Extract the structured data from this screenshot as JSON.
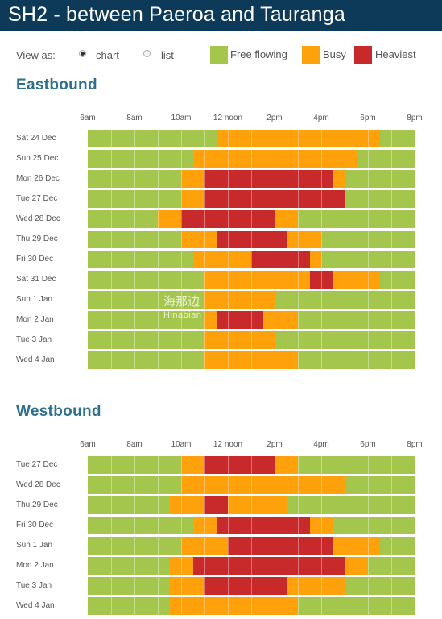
{
  "header": {
    "title": "SH2 - between Paeroa and Tauranga"
  },
  "view": {
    "label": "View as:",
    "options": [
      "chart",
      "list"
    ],
    "selected": "chart"
  },
  "legend": [
    {
      "label": "Free flowing",
      "color": "#a5c64d"
    },
    {
      "label": "Busy",
      "color": "#ffa10a"
    },
    {
      "label": "Heaviest",
      "color": "#c8292a"
    }
  ],
  "time_axis": {
    "labels": [
      "6am",
      "8am",
      "10am",
      "12 noon",
      "2pm",
      "4pm",
      "6pm",
      "8pm"
    ]
  },
  "watermark": {
    "cn": "海那边",
    "en": "Hinabian"
  },
  "chart_data": [
    {
      "type": "timeline",
      "title": "Eastbound",
      "x_unit": "hour of day",
      "xlim": [
        6,
        20
      ],
      "levels": [
        "Free flowing",
        "Busy",
        "Heaviest"
      ],
      "rows": [
        {
          "label": "Sat 24 Dec",
          "busy": [
            [
              11.5,
              18.5
            ]
          ],
          "heaviest": []
        },
        {
          "label": "Sun 25 Dec",
          "busy": [
            [
              10.5,
              17.5
            ]
          ],
          "heaviest": []
        },
        {
          "label": "Mon 26 Dec",
          "busy": [
            [
              10,
              17
            ]
          ],
          "heaviest": [
            [
              11,
              16.5
            ]
          ]
        },
        {
          "label": "Tue 27 Dec",
          "busy": [
            [
              10,
              17
            ]
          ],
          "heaviest": [
            [
              11,
              17
            ]
          ]
        },
        {
          "label": "Wed 28 Dec",
          "busy": [
            [
              9,
              15
            ]
          ],
          "heaviest": [
            [
              10,
              14
            ]
          ]
        },
        {
          "label": "Thu 29 Dec",
          "busy": [
            [
              10,
              16
            ]
          ],
          "heaviest": [
            [
              11.5,
              14.5
            ]
          ]
        },
        {
          "label": "Fri 30 Dec",
          "busy": [
            [
              10.5,
              16
            ]
          ],
          "heaviest": [
            [
              13,
              15.5
            ]
          ]
        },
        {
          "label": "Sat 31 Dec",
          "busy": [
            [
              11,
              18.5
            ]
          ],
          "heaviest": [
            [
              15.5,
              16.5
            ]
          ]
        },
        {
          "label": "Sun 1 Jan",
          "busy": [
            [
              11,
              14
            ]
          ],
          "heaviest": []
        },
        {
          "label": "Mon 2 Jan",
          "busy": [
            [
              11,
              15
            ]
          ],
          "heaviest": [
            [
              11.5,
              13.5
            ]
          ]
        },
        {
          "label": "Tue 3 Jan",
          "busy": [
            [
              11,
              14
            ]
          ],
          "heaviest": []
        },
        {
          "label": "Wed 4 Jan",
          "busy": [
            [
              11,
              15
            ]
          ],
          "heaviest": []
        }
      ]
    },
    {
      "type": "timeline",
      "title": "Westbound",
      "x_unit": "hour of day",
      "xlim": [
        6,
        20
      ],
      "levels": [
        "Free flowing",
        "Busy",
        "Heaviest"
      ],
      "rows": [
        {
          "label": "Tue 27 Dec",
          "busy": [
            [
              10,
              15
            ]
          ],
          "heaviest": [
            [
              11,
              14
            ]
          ]
        },
        {
          "label": "Wed 28 Dec",
          "busy": [
            [
              10,
              17
            ]
          ],
          "heaviest": []
        },
        {
          "label": "Thu 29 Dec",
          "busy": [
            [
              9.5,
              14.5
            ]
          ],
          "heaviest": [
            [
              11,
              12
            ]
          ]
        },
        {
          "label": "Fri 30 Dec",
          "busy": [
            [
              10.5,
              16.5
            ]
          ],
          "heaviest": [
            [
              11.5,
              15.5
            ]
          ]
        },
        {
          "label": "Sun 1 Jan",
          "busy": [
            [
              10,
              18.5
            ]
          ],
          "heaviest": [
            [
              12,
              16.5
            ]
          ]
        },
        {
          "label": "Mon 2 Jan",
          "busy": [
            [
              9.5,
              18
            ]
          ],
          "heaviest": [
            [
              10.5,
              17
            ]
          ]
        },
        {
          "label": "Tue 3 Jan",
          "busy": [
            [
              9.5,
              17
            ]
          ],
          "heaviest": [
            [
              11,
              14.5
            ]
          ]
        },
        {
          "label": "Wed 4 Jan",
          "busy": [
            [
              9.5,
              15
            ]
          ],
          "heaviest": []
        }
      ]
    }
  ]
}
